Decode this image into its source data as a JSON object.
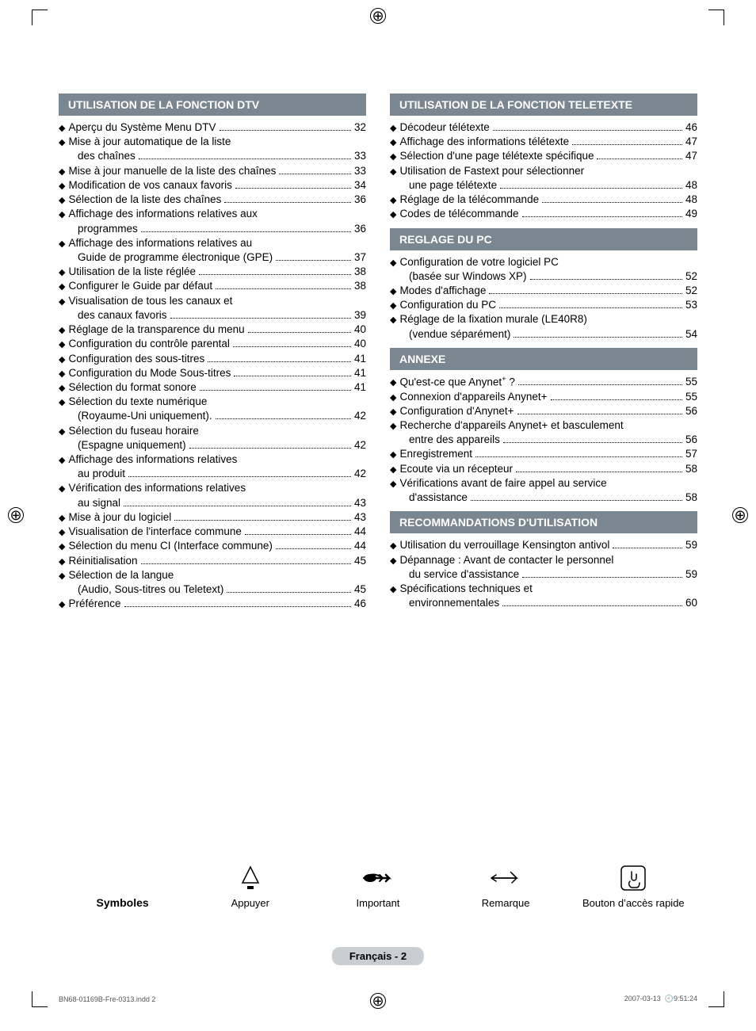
{
  "meta": {
    "page_badge": "Français - 2",
    "footer_left": "BN68-01169B-Fre-0313.indd   2",
    "footer_date": "2007-03-13",
    "footer_time": "9:51:24"
  },
  "colors": {
    "section_header_bg": "#7a8790",
    "section_header_text": "#ffffff",
    "page_badge_bg": "#c9ced2",
    "body_text": "#000000",
    "page_bg": "#ffffff",
    "crop_mark": "#000000",
    "footer_text": "#555555"
  },
  "typography": {
    "body_font": "Arial, Helvetica, sans-serif",
    "header_font_size_pt": 10.5,
    "body_font_size_pt": 10,
    "line_height": 1.35
  },
  "sections_left": [
    {
      "title": "UTILISATION DE LA FONCTION DTV",
      "items": [
        {
          "t": "Aperçu du Système Menu DTV",
          "p": "32"
        },
        {
          "t": "Mise à jour automatique de la liste",
          "cont": "des chaînes",
          "p": "33"
        },
        {
          "t": "Mise à jour manuelle de la liste des chaînes",
          "p": "33"
        },
        {
          "t": "Modification de vos canaux favoris",
          "p": "34"
        },
        {
          "t": "Sélection de la liste des chaînes",
          "p": "36"
        },
        {
          "t": "Affichage des informations relatives aux",
          "cont": "programmes",
          "p": "36"
        },
        {
          "t": "Affichage des informations relatives au",
          "cont": "Guide de programme électronique (GPE)",
          "p": "37"
        },
        {
          "t": "Utilisation de la liste réglée",
          "p": "38"
        },
        {
          "t": "Configurer le Guide par défaut",
          "p": "38"
        },
        {
          "t": "Visualisation de tous les canaux et",
          "cont": "des canaux favoris",
          "p": "39"
        },
        {
          "t": "Réglage de la transparence du menu",
          "p": "40"
        },
        {
          "t": "Configuration du contrôle parental",
          "p": "40"
        },
        {
          "t": "Configuration des sous-titres",
          "p": "41"
        },
        {
          "t": "Configuration du Mode Sous-titres",
          "p": "41"
        },
        {
          "t": "Sélection du format sonore",
          "p": "41"
        },
        {
          "t": "Sélection du texte numérique",
          "cont": "(Royaume-Uni uniquement).",
          "p": "42"
        },
        {
          "t": "Sélection du fuseau horaire",
          "cont": "(Espagne uniquement)",
          "p": "42"
        },
        {
          "t": "Affichage des informations relatives",
          "cont": "au produit",
          "p": "42"
        },
        {
          "t": "Vérification des informations relatives",
          "cont": "au signal",
          "p": "43"
        },
        {
          "t": "Mise à jour du logiciel",
          "p": "43"
        },
        {
          "t": "Visualisation de l'interface commune",
          "p": "44"
        },
        {
          "t": "Sélection du menu CI (Interface commune)",
          "p": "44"
        },
        {
          "t": "Réinitialisation",
          "p": "45"
        },
        {
          "t": "Sélection de la langue",
          "cont": "(Audio, Sous-titres ou Teletext)",
          "p": "45"
        },
        {
          "t": "Préférence",
          "p": "46"
        }
      ]
    }
  ],
  "sections_right": [
    {
      "title": "UTILISATION DE LA FONCTION TELETEXTE",
      "items": [
        {
          "t": "Décodeur télétexte",
          "p": "46"
        },
        {
          "t": "Affichage des informations télétexte",
          "p": "47"
        },
        {
          "t": "Sélection d'une page télétexte spécifique",
          "p": "47"
        },
        {
          "t": "Utilisation de Fastext pour sélectionner",
          "cont": "une page télétexte",
          "p": "48"
        },
        {
          "t": "Réglage de la télécommande",
          "p": "48"
        },
        {
          "t": "Codes de télécommande",
          "p": "49"
        }
      ]
    },
    {
      "title": "REGLAGE DU PC",
      "items": [
        {
          "t": "Configuration de votre logiciel PC",
          "cont": "(basée sur Windows XP)",
          "p": "52"
        },
        {
          "t": "Modes d'affichage",
          "p": "52"
        },
        {
          "t": "Configuration du PC",
          "p": "53"
        },
        {
          "t": "Réglage de la fixation murale (LE40R8)",
          "cont": "(vendue séparément)",
          "p": "54"
        }
      ]
    },
    {
      "title": "ANNEXE",
      "items": [
        {
          "t": "Qu'est-ce que Anynet<sup>+</sup> ?",
          "p": "55",
          "html": true
        },
        {
          "t": "Connexion d'appareils Anynet+",
          "p": "55"
        },
        {
          "t": "Configuration d'Anynet+",
          "p": "56"
        },
        {
          "t": "Recherche d'appareils Anynet+ et basculement",
          "cont": "entre des appareils",
          "p": "56"
        },
        {
          "t": "Enregistrement",
          "p": "57"
        },
        {
          "t": "Ecoute via un récepteur",
          "p": "58"
        },
        {
          "t": "Vérifications avant de faire appel au service",
          "cont": "d'assistance",
          "p": "58"
        }
      ]
    },
    {
      "title": "RECOMMANDATIONS D'UTILISATION",
      "items": [
        {
          "t": "Utilisation du verrouillage Kensington antivol",
          "p": "59"
        },
        {
          "t": "Dépannage : Avant de contacter le personnel",
          "cont": "du service d'assistance",
          "p": "59"
        },
        {
          "t": "Spécifications techniques et",
          "cont": "environnementales",
          "p": "60"
        }
      ]
    }
  ],
  "symbols": {
    "title": "Symboles",
    "items": [
      {
        "label": "Appuyer",
        "icon": "press"
      },
      {
        "label": "Important",
        "icon": "important"
      },
      {
        "label": "Remarque",
        "icon": "note"
      },
      {
        "label": "Bouton d’accès rapide",
        "icon": "quick"
      }
    ]
  }
}
